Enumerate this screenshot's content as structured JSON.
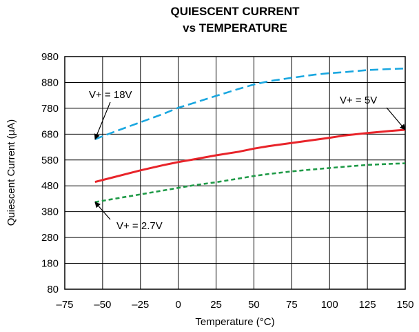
{
  "chart_data": {
    "type": "line",
    "title": "QUIESCENT CURRENT",
    "subtitle": "vs TEMPERATURE",
    "xlabel": "Temperature (°C)",
    "ylabel": "Quiescent Current (μA)",
    "xlim": [
      -75,
      150
    ],
    "ylim": [
      80,
      980
    ],
    "xticks": [
      -75,
      -50,
      -25,
      0,
      25,
      50,
      75,
      100,
      125,
      150
    ],
    "yticks": [
      80,
      180,
      280,
      380,
      480,
      580,
      680,
      780,
      880,
      980
    ],
    "xtick_labels": [
      "–75",
      "–50",
      "–25",
      "0",
      "25",
      "50",
      "75",
      "100",
      "125",
      "150"
    ],
    "ytick_labels": [
      "80",
      "180",
      "280",
      "380",
      "480",
      "580",
      "680",
      "780",
      "880",
      "980"
    ],
    "grid": true,
    "series": [
      {
        "name": "V+ = 18V",
        "color": "#1aa7e0",
        "dash": "dashed",
        "points": [
          [
            -55,
            660
          ],
          [
            -50,
            672
          ],
          [
            -40,
            694
          ],
          [
            -25,
            726
          ],
          [
            -10,
            758
          ],
          [
            0,
            782
          ],
          [
            10,
            800
          ],
          [
            25,
            828
          ],
          [
            40,
            855
          ],
          [
            50,
            872
          ],
          [
            60,
            885
          ],
          [
            75,
            898
          ],
          [
            90,
            910
          ],
          [
            100,
            916
          ],
          [
            110,
            920
          ],
          [
            125,
            928
          ],
          [
            140,
            932
          ],
          [
            150,
            934
          ]
        ]
      },
      {
        "name": "V+ = 5V",
        "color": "#e8242a",
        "dash": "solid",
        "points": [
          [
            -55,
            495
          ],
          [
            -45,
            510
          ],
          [
            -25,
            540
          ],
          [
            -10,
            560
          ],
          [
            0,
            572
          ],
          [
            10,
            582
          ],
          [
            25,
            598
          ],
          [
            40,
            612
          ],
          [
            50,
            624
          ],
          [
            60,
            634
          ],
          [
            75,
            646
          ],
          [
            90,
            658
          ],
          [
            100,
            666
          ],
          [
            110,
            675
          ],
          [
            125,
            684
          ],
          [
            140,
            692
          ],
          [
            150,
            697
          ]
        ]
      },
      {
        "name": "V+ = 2.7V",
        "color": "#1f9a47",
        "dash": "dotted",
        "points": [
          [
            -55,
            417
          ],
          [
            -40,
            432
          ],
          [
            -25,
            447
          ],
          [
            -10,
            462
          ],
          [
            0,
            472
          ],
          [
            10,
            482
          ],
          [
            25,
            494
          ],
          [
            40,
            508
          ],
          [
            50,
            518
          ],
          [
            60,
            526
          ],
          [
            75,
            536
          ],
          [
            90,
            544
          ],
          [
            100,
            549
          ],
          [
            110,
            554
          ],
          [
            125,
            561
          ],
          [
            140,
            565
          ],
          [
            150,
            567
          ]
        ]
      }
    ],
    "annotations": [
      {
        "text": "V+ = 18V",
        "series": 0
      },
      {
        "text": "V+ = 5V",
        "series": 1
      },
      {
        "text": "V+ = 2.7V",
        "series": 2
      }
    ]
  }
}
